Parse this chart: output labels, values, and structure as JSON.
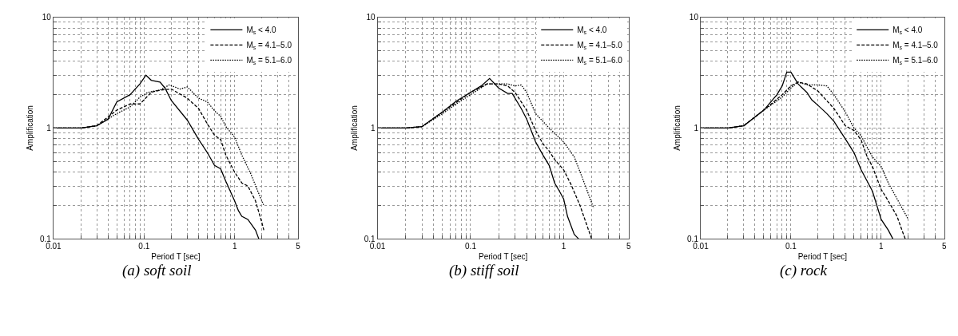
{
  "chart_data": [
    {
      "type": "line",
      "xlabel": "Period T [sec]",
      "ylabel": "Amplification",
      "annotations": [
        "(a) soft soil"
      ],
      "log": "xy",
      "grid": true,
      "legend": "top right",
      "marker": "none",
      "xlim": [
        0.01,
        5
      ],
      "ylim": [
        0.1,
        10
      ],
      "xticks": [
        0.01,
        {
          "value": 0.02,
          "label": null
        },
        {
          "value": 0.03,
          "label": null
        },
        {
          "value": 0.04,
          "label": null
        },
        {
          "value": 0.05,
          "label": null
        },
        {
          "value": 0.06,
          "label": null
        },
        {
          "value": 0.07,
          "label": null
        },
        {
          "value": 0.08,
          "label": null
        },
        {
          "value": 0.09,
          "label": null
        },
        0.1,
        {
          "value": 0.2,
          "label": null
        },
        {
          "value": 0.3,
          "label": null
        },
        {
          "value": 0.4,
          "label": null
        },
        {
          "value": 0.5,
          "label": null
        },
        {
          "value": 0.6,
          "label": null
        },
        {
          "value": 0.7,
          "label": null
        },
        {
          "value": 0.8,
          "label": null
        },
        {
          "value": 0.9,
          "label": null
        },
        1,
        {
          "value": 2,
          "label": null
        },
        {
          "value": 3,
          "label": null
        },
        {
          "value": 4,
          "label": null
        },
        5
      ],
      "yticks": [
        0.1,
        {
          "value": 0.2,
          "label": null
        },
        {
          "value": 0.3,
          "label": null
        },
        {
          "value": 0.4,
          "label": null
        },
        {
          "value": 0.5,
          "label": null
        },
        {
          "value": 0.6,
          "label": null
        },
        {
          "value": 0.7,
          "label": null
        },
        {
          "value": 0.8,
          "label": null
        },
        {
          "value": 0.9,
          "label": null
        },
        1,
        {
          "value": 2,
          "label": null
        },
        {
          "value": 3,
          "label": null
        },
        {
          "value": 4,
          "label": null
        },
        {
          "value": 5,
          "label": null
        },
        {
          "value": 6,
          "label": null
        },
        {
          "value": 7,
          "label": null
        },
        {
          "value": 8,
          "label": null
        },
        {
          "value": 9,
          "label": null
        },
        10
      ],
      "series": [
        {
          "name": "M$_{s}$ < 4.0",
          "color": "#000000",
          "line_style": "solid",
          "x": [
            0.01,
            0.02,
            0.03,
            0.04,
            0.05,
            0.07,
            0.09,
            0.105,
            0.12,
            0.15,
            0.17,
            0.2,
            0.3,
            0.4,
            0.5,
            0.6,
            0.7,
            0.8,
            1.0,
            1.1,
            1.2,
            1.4,
            1.7,
            1.85
          ],
          "values": [
            1,
            1,
            1.05,
            1.2,
            1.72,
            2.0,
            2.5,
            3.0,
            2.7,
            2.6,
            2.3,
            1.77,
            1.18,
            0.79,
            0.6,
            0.46,
            0.43,
            0.33,
            0.22,
            0.18,
            0.16,
            0.15,
            0.12,
            0.1
          ]
        },
        {
          "name": "M$_{s}$ = 4.1–5.0",
          "color": "#000000",
          "line_style": "dashed",
          "x": [
            0.01,
            0.02,
            0.03,
            0.05,
            0.07,
            0.09,
            0.1,
            0.12,
            0.15,
            0.2,
            0.3,
            0.4,
            0.5,
            0.6,
            0.7,
            0.8,
            1.0,
            1.2,
            1.4,
            1.7,
            2.0,
            2.1
          ],
          "values": [
            1,
            1,
            1.05,
            1.45,
            1.65,
            1.65,
            1.8,
            2.1,
            2.2,
            2.25,
            1.86,
            1.5,
            1.09,
            0.86,
            0.79,
            0.57,
            0.4,
            0.32,
            0.3,
            0.22,
            0.14,
            0.12
          ]
        },
        {
          "name": "M$_{s}$ = 5.1–6.0",
          "color": "#000000",
          "line_style": "dotted",
          "x": [
            0.01,
            0.02,
            0.03,
            0.05,
            0.07,
            0.09,
            0.11,
            0.15,
            0.19,
            0.25,
            0.3,
            0.4,
            0.5,
            0.6,
            0.7,
            0.8,
            1.0,
            1.2,
            1.5,
            1.8,
            2.1
          ],
          "values": [
            1,
            1,
            1.05,
            1.35,
            1.55,
            1.9,
            2.1,
            2.2,
            2.45,
            2.25,
            2.35,
            1.86,
            1.72,
            1.43,
            1.28,
            1.03,
            0.83,
            0.57,
            0.39,
            0.27,
            0.2
          ]
        }
      ]
    },
    {
      "type": "line",
      "xlabel": "Period T [sec]",
      "ylabel": "Amplification",
      "annotations": [
        "(b) stiff soil"
      ],
      "log": "xy",
      "grid": true,
      "legend": "top right",
      "marker": "none",
      "xlim": [
        0.01,
        5
      ],
      "ylim": [
        0.1,
        10
      ],
      "xticks": [
        0.01,
        {
          "value": 0.02,
          "label": null
        },
        {
          "value": 0.03,
          "label": null
        },
        {
          "value": 0.04,
          "label": null
        },
        {
          "value": 0.05,
          "label": null
        },
        {
          "value": 0.06,
          "label": null
        },
        {
          "value": 0.07,
          "label": null
        },
        {
          "value": 0.08,
          "label": null
        },
        {
          "value": 0.09,
          "label": null
        },
        0.1,
        {
          "value": 0.2,
          "label": null
        },
        {
          "value": 0.3,
          "label": null
        },
        {
          "value": 0.4,
          "label": null
        },
        {
          "value": 0.5,
          "label": null
        },
        {
          "value": 0.6,
          "label": null
        },
        {
          "value": 0.7,
          "label": null
        },
        {
          "value": 0.8,
          "label": null
        },
        {
          "value": 0.9,
          "label": null
        },
        1,
        {
          "value": 2,
          "label": null
        },
        {
          "value": 3,
          "label": null
        },
        {
          "value": 4,
          "label": null
        },
        5
      ],
      "yticks": [
        0.1,
        {
          "value": 0.2,
          "label": null
        },
        {
          "value": 0.3,
          "label": null
        },
        {
          "value": 0.4,
          "label": null
        },
        {
          "value": 0.5,
          "label": null
        },
        {
          "value": 0.6,
          "label": null
        },
        {
          "value": 0.7,
          "label": null
        },
        {
          "value": 0.8,
          "label": null
        },
        {
          "value": 0.9,
          "label": null
        },
        1,
        {
          "value": 2,
          "label": null
        },
        {
          "value": 3,
          "label": null
        },
        {
          "value": 4,
          "label": null
        },
        {
          "value": 5,
          "label": null
        },
        {
          "value": 6,
          "label": null
        },
        {
          "value": 7,
          "label": null
        },
        {
          "value": 8,
          "label": null
        },
        {
          "value": 9,
          "label": null
        },
        10
      ],
      "series": [
        {
          "name": "M$_{s}$ < 4.0",
          "color": "#000000",
          "line_style": "solid",
          "x": [
            0.01,
            0.02,
            0.03,
            0.05,
            0.07,
            0.1,
            0.13,
            0.16,
            0.2,
            0.25,
            0.28,
            0.35,
            0.4,
            0.5,
            0.6,
            0.7,
            0.8,
            0.9,
            1.0,
            1.1,
            1.3,
            1.45
          ],
          "values": [
            1,
            1,
            1.03,
            1.4,
            1.75,
            2.1,
            2.4,
            2.8,
            2.3,
            2.05,
            2.05,
            1.5,
            1.21,
            0.75,
            0.57,
            0.46,
            0.32,
            0.27,
            0.23,
            0.16,
            0.11,
            0.1
          ]
        },
        {
          "name": "M$_{s}$ = 4.1–5.0",
          "color": "#000000",
          "line_style": "dashed",
          "x": [
            0.01,
            0.02,
            0.03,
            0.05,
            0.07,
            0.1,
            0.15,
            0.2,
            0.25,
            0.3,
            0.4,
            0.5,
            0.6,
            0.7,
            0.8,
            1.0,
            1.2,
            1.5,
            2.0
          ],
          "values": [
            1,
            1,
            1.03,
            1.4,
            1.7,
            2.1,
            2.5,
            2.5,
            2.4,
            2.1,
            1.45,
            0.95,
            0.72,
            0.62,
            0.52,
            0.42,
            0.31,
            0.2,
            0.1
          ]
        },
        {
          "name": "M$_{s}$ = 5.1–6.0",
          "color": "#000000",
          "line_style": "dotted",
          "x": [
            0.01,
            0.02,
            0.03,
            0.05,
            0.07,
            0.1,
            0.15,
            0.25,
            0.3,
            0.35,
            0.4,
            0.5,
            0.7,
            1.0,
            1.3,
            1.6,
            2.1
          ],
          "values": [
            1,
            1,
            1.03,
            1.35,
            1.65,
            2.0,
            2.5,
            2.5,
            2.4,
            2.45,
            2.1,
            1.35,
            1.0,
            0.75,
            0.55,
            0.35,
            0.19
          ]
        }
      ]
    },
    {
      "type": "line",
      "xlabel": "Period T [sec]",
      "ylabel": "Amplification",
      "annotations": [
        "(c) rock"
      ],
      "log": "xy",
      "grid": true,
      "legend": "top right",
      "marker": "none",
      "xlim": [
        0.01,
        5
      ],
      "ylim": [
        0.1,
        10
      ],
      "xticks": [
        0.01,
        {
          "value": 0.02,
          "label": null
        },
        {
          "value": 0.03,
          "label": null
        },
        {
          "value": 0.04,
          "label": null
        },
        {
          "value": 0.05,
          "label": null
        },
        {
          "value": 0.06,
          "label": null
        },
        {
          "value": 0.07,
          "label": null
        },
        {
          "value": 0.08,
          "label": null
        },
        {
          "value": 0.09,
          "label": null
        },
        0.1,
        {
          "value": 0.2,
          "label": null
        },
        {
          "value": 0.3,
          "label": null
        },
        {
          "value": 0.4,
          "label": null
        },
        {
          "value": 0.5,
          "label": null
        },
        {
          "value": 0.6,
          "label": null
        },
        {
          "value": 0.7,
          "label": null
        },
        {
          "value": 0.8,
          "label": null
        },
        {
          "value": 0.9,
          "label": null
        },
        1,
        {
          "value": 2,
          "label": null
        },
        {
          "value": 3,
          "label": null
        },
        {
          "value": 4,
          "label": null
        },
        5
      ],
      "yticks": [
        0.1,
        {
          "value": 0.2,
          "label": null
        },
        {
          "value": 0.3,
          "label": null
        },
        {
          "value": 0.4,
          "label": null
        },
        {
          "value": 0.5,
          "label": null
        },
        {
          "value": 0.6,
          "label": null
        },
        {
          "value": 0.7,
          "label": null
        },
        {
          "value": 0.8,
          "label": null
        },
        {
          "value": 0.9,
          "label": null
        },
        1,
        {
          "value": 2,
          "label": null
        },
        {
          "value": 3,
          "label": null
        },
        {
          "value": 4,
          "label": null
        },
        {
          "value": 5,
          "label": null
        },
        {
          "value": 6,
          "label": null
        },
        {
          "value": 7,
          "label": null
        },
        {
          "value": 8,
          "label": null
        },
        {
          "value": 9,
          "label": null
        },
        10
      ],
      "series": [
        {
          "name": "M$_{s}$ < 4.0",
          "color": "#000000",
          "line_style": "solid",
          "x": [
            0.01,
            0.02,
            0.03,
            0.05,
            0.07,
            0.08,
            0.09,
            0.1,
            0.12,
            0.15,
            0.17,
            0.2,
            0.25,
            0.3,
            0.4,
            0.5,
            0.6,
            0.8,
            1.0,
            1.2,
            1.35
          ],
          "values": [
            1,
            1,
            1.05,
            1.45,
            2.0,
            2.4,
            3.2,
            3.2,
            2.5,
            2.1,
            1.8,
            1.6,
            1.35,
            1.15,
            0.8,
            0.6,
            0.42,
            0.27,
            0.15,
            0.12,
            0.1
          ]
        },
        {
          "name": "M$_{s}$ = 4.1–5.0",
          "color": "#000000",
          "line_style": "dashed",
          "x": [
            0.01,
            0.02,
            0.03,
            0.05,
            0.08,
            0.1,
            0.12,
            0.15,
            0.2,
            0.3,
            0.4,
            0.5,
            0.6,
            0.7,
            0.8,
            1.0,
            1.2,
            1.5,
            1.7,
            1.85
          ],
          "values": [
            1,
            1,
            1.05,
            1.45,
            2.0,
            2.4,
            2.6,
            2.5,
            2.15,
            1.5,
            1.05,
            0.95,
            0.78,
            0.55,
            0.45,
            0.28,
            0.22,
            0.16,
            0.12,
            0.1
          ]
        },
        {
          "name": "M$_{s}$ = 5.1–6.0",
          "color": "#000000",
          "line_style": "dotted",
          "x": [
            0.01,
            0.02,
            0.03,
            0.05,
            0.08,
            0.1,
            0.12,
            0.15,
            0.2,
            0.25,
            0.3,
            0.4,
            0.5,
            0.6,
            0.8,
            1.0,
            1.2,
            1.5,
            2.0
          ],
          "values": [
            1,
            1,
            1.05,
            1.45,
            1.9,
            2.3,
            2.6,
            2.45,
            2.45,
            2.4,
            2.0,
            1.4,
            1.0,
            0.85,
            0.55,
            0.45,
            0.32,
            0.23,
            0.15
          ]
        }
      ]
    }
  ]
}
